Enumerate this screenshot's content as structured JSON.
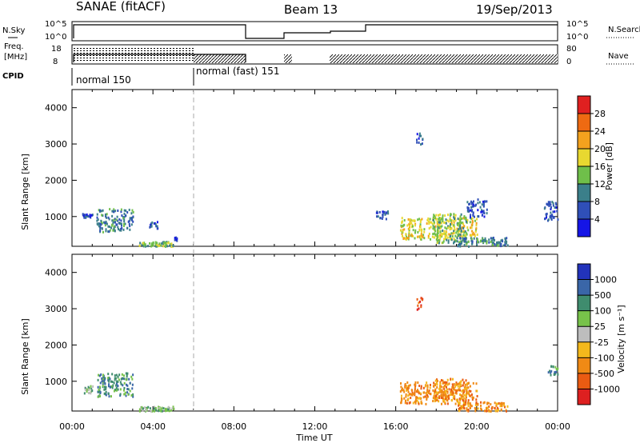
{
  "header": {
    "title": "SANAE (fitACF)",
    "beam": "Beam 13",
    "date": "19/Sep/2013"
  },
  "strips": {
    "nsky_label": "N.Sky",
    "nsearch_label": "N.Search",
    "freq_label_1": "Freq.",
    "freq_label_2": "[MHz]",
    "nave_label": "Nave",
    "cpid_label": "CPID",
    "nsky_ticks": [
      "10^5",
      "10^0"
    ],
    "nsearch_ticks": [
      "10^5",
      "10^0"
    ],
    "freq_ticks": [
      "18",
      "8"
    ],
    "nave_ticks": [
      "80",
      "0"
    ],
    "modes": [
      {
        "name": "normal 150",
        "start": 0.0,
        "end": 6.0
      },
      {
        "name": "normal (fast) 151",
        "start": 6.0,
        "end": 24.0
      }
    ]
  },
  "colorbars": {
    "power": {
      "label": "Power [dB]",
      "ticks": [
        "4",
        "8",
        "12",
        "16",
        "20",
        "24",
        "28"
      ],
      "colors": [
        "#1515e6",
        "#2f4fb8",
        "#3b7f8a",
        "#6fbf4a",
        "#e8d830",
        "#f3a21e",
        "#ee6a12",
        "#e02020"
      ]
    },
    "velocity": {
      "label": "Velocity [m s⁻¹]",
      "ticks": [
        "1000",
        "500",
        "100",
        "25",
        "-25",
        "-100",
        "-500",
        "-1000"
      ],
      "colors": [
        "#2233bb",
        "#3a66a8",
        "#3f8c6e",
        "#77c24a",
        "#bdbdbd",
        "#f3b81c",
        "#f08a15",
        "#ea5b12",
        "#dd2020"
      ]
    }
  },
  "chart_data": [
    {
      "type": "heatmap",
      "panel": "power",
      "ylabel": "Slant Range [km]",
      "xlabel": "",
      "xlim": [
        0,
        24
      ],
      "ylim": [
        180,
        4500
      ],
      "yticks": [
        "1000",
        "2000",
        "3000",
        "4000"
      ],
      "xticks": [
        "00:00",
        "04:00",
        "08:00",
        "12:00",
        "16:00",
        "20:00",
        "00:00"
      ],
      "clusters": [
        {
          "t0": 1.2,
          "t1": 3.0,
          "r0": 600,
          "r1": 1250,
          "level": 2
        },
        {
          "t0": 0.5,
          "t1": 1.0,
          "r0": 1000,
          "r1": 1100,
          "level": 1
        },
        {
          "t0": 3.8,
          "t1": 4.2,
          "r0": 700,
          "r1": 900,
          "level": 1
        },
        {
          "t0": 3.3,
          "t1": 5.0,
          "r0": 200,
          "r1": 330,
          "level": 3
        },
        {
          "t0": 5.0,
          "t1": 5.2,
          "r0": 350,
          "r1": 500,
          "level": 1
        },
        {
          "t0": 17.0,
          "t1": 17.3,
          "r0": 3000,
          "r1": 3350,
          "level": 1
        },
        {
          "t0": 16.2,
          "t1": 20.0,
          "r0": 400,
          "r1": 1000,
          "level": 4
        },
        {
          "t0": 17.8,
          "t1": 19.5,
          "r0": 300,
          "r1": 1100,
          "level": 3
        },
        {
          "t0": 19.0,
          "t1": 21.5,
          "r0": 200,
          "r1": 450,
          "level": 2
        },
        {
          "t0": 19.5,
          "t1": 20.5,
          "r0": 1000,
          "r1": 1500,
          "level": 1
        },
        {
          "t0": 23.3,
          "t1": 24.0,
          "r0": 900,
          "r1": 1450,
          "level": 1
        },
        {
          "t0": 15.0,
          "t1": 15.6,
          "r0": 950,
          "r1": 1200,
          "level": 1
        }
      ]
    },
    {
      "type": "heatmap",
      "panel": "velocity",
      "ylabel": "Slant Range [km]",
      "xlabel": "Time UT",
      "xlim": [
        0,
        24
      ],
      "ylim": [
        180,
        4500
      ],
      "yticks": [
        "1000",
        "2000",
        "3000",
        "4000"
      ],
      "xticks": [
        "00:00",
        "04:00",
        "08:00",
        "12:00",
        "16:00",
        "20:00",
        "00:00"
      ],
      "clusters": [
        {
          "t0": 1.2,
          "t1": 3.0,
          "r0": 600,
          "r1": 1250,
          "level": 2
        },
        {
          "t0": 0.5,
          "t1": 1.0,
          "r0": 700,
          "r1": 900,
          "level": 3
        },
        {
          "t0": 3.3,
          "t1": 5.0,
          "r0": 200,
          "r1": 330,
          "level": 3
        },
        {
          "t0": 17.0,
          "t1": 17.3,
          "r0": 3000,
          "r1": 3350,
          "level": 7
        },
        {
          "t0": 16.2,
          "t1": 20.0,
          "r0": 400,
          "r1": 1000,
          "level": 6
        },
        {
          "t0": 17.8,
          "t1": 19.5,
          "r0": 500,
          "r1": 1100,
          "level": 6
        },
        {
          "t0": 19.0,
          "t1": 21.5,
          "r0": 200,
          "r1": 450,
          "level": 6
        },
        {
          "t0": 23.5,
          "t1": 24.0,
          "r0": 1200,
          "r1": 1450,
          "level": 2
        }
      ]
    }
  ]
}
